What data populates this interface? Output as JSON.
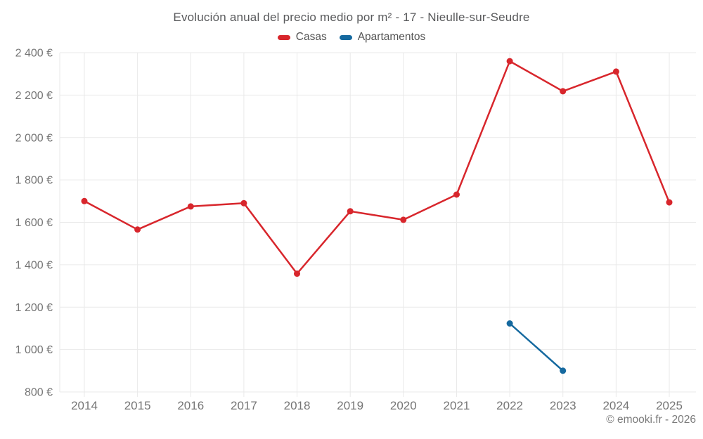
{
  "title": "Evolución anual del precio medio por m² - 17 - Nieulle-sur-Seudre",
  "legend": [
    {
      "label": "Casas",
      "color": "#d8262c"
    },
    {
      "label": "Apartamentos",
      "color": "#15699f"
    }
  ],
  "attribution": "© emooki.fr - 2026",
  "colors": {
    "grid": "#e9e9e9",
    "axis_label": "#757575",
    "title": "#595a5c",
    "background": "#ffffff"
  },
  "chart_data": {
    "type": "line",
    "title": "Evolución anual del precio medio por m² - 17 - Nieulle-sur-Seudre",
    "categories": [
      "2014",
      "2015",
      "2016",
      "2017",
      "2018",
      "2019",
      "2020",
      "2021",
      "2022",
      "2023",
      "2024",
      "2025"
    ],
    "series": [
      {
        "name": "Casas",
        "color": "#d8262c",
        "values": [
          1700,
          1566,
          1675,
          1690,
          1358,
          1652,
          1612,
          1731,
          2360,
          2218,
          2311,
          1694
        ]
      },
      {
        "name": "Apartamentos",
        "color": "#15699f",
        "values": [
          null,
          null,
          null,
          null,
          null,
          null,
          null,
          null,
          1123,
          900,
          null,
          null
        ]
      }
    ],
    "xlabel": "",
    "ylabel": "",
    "ylim": [
      800,
      2400
    ],
    "ytick_step": 200,
    "yticks": [
      {
        "value": 2400,
        "label": "2 400 €"
      },
      {
        "value": 2200,
        "label": "2 200 €"
      },
      {
        "value": 2000,
        "label": "2 000 €"
      },
      {
        "value": 1800,
        "label": "1 800 €"
      },
      {
        "value": 1600,
        "label": "1 600 €"
      },
      {
        "value": 1400,
        "label": "1 400 €"
      },
      {
        "value": 1200,
        "label": "1 200 €"
      },
      {
        "value": 1000,
        "label": "1 000 €"
      },
      {
        "value": 800,
        "label": "800 €"
      }
    ],
    "grid": true,
    "legend_position": "top",
    "currency": "€"
  }
}
